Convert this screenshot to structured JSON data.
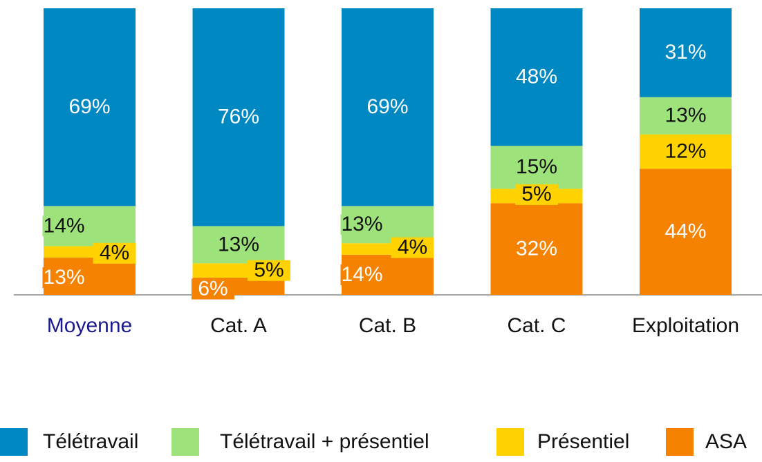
{
  "chart_data": {
    "type": "stacked_bar",
    "categories": [
      "Moyenne",
      "Cat. A",
      "Cat. B",
      "Cat. C",
      "Exploitation"
    ],
    "series": [
      {
        "name": "Télétravail",
        "color": "#0088c2",
        "values": [
          69,
          76,
          69,
          48,
          31
        ],
        "value_labels": [
          "69%",
          "76%",
          "69%",
          "48%",
          "31%"
        ]
      },
      {
        "name": "Télétravail + présentiel",
        "color": "#9de27a",
        "values": [
          14,
          13,
          13,
          15,
          13
        ],
        "value_labels": [
          "14%",
          "13%",
          "13%",
          "15%",
          "13%"
        ]
      },
      {
        "name": "Présentiel",
        "color": "#ffd200",
        "values": [
          4,
          5,
          4,
          5,
          12
        ],
        "value_labels": [
          "4%",
          "5%",
          "4%",
          "5%",
          "12%"
        ]
      },
      {
        "name": "ASA",
        "color": "#f58200",
        "values": [
          13,
          6,
          14,
          32,
          44
        ],
        "value_labels": [
          "13%",
          "6%",
          "14%",
          "32%",
          "44%"
        ]
      }
    ],
    "ylim": [
      0,
      100
    ]
  }
}
